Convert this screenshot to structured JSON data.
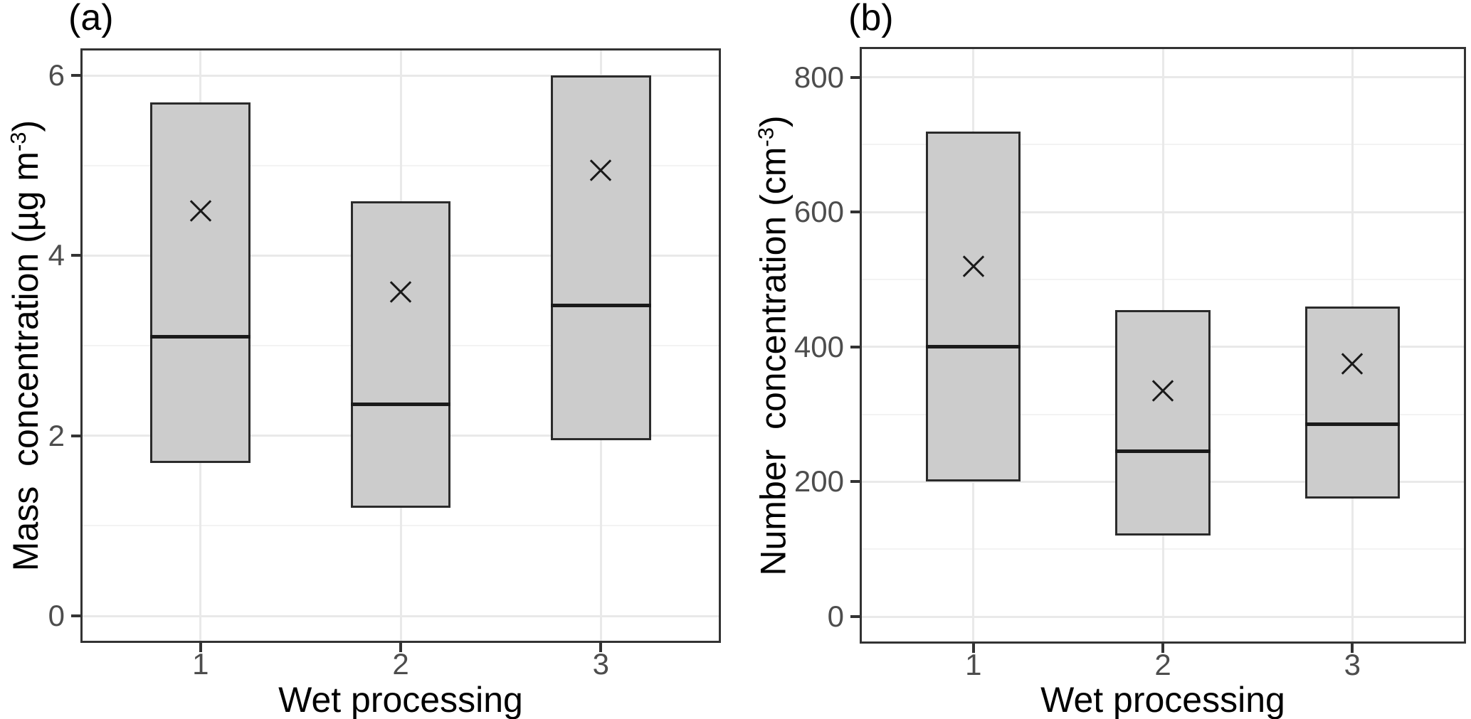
{
  "figure": {
    "background": "#ffffff",
    "panel_count": 2
  },
  "colors": {
    "background": "#ffffff",
    "panel_background": "#ffffff",
    "panel_border": "#333333",
    "grid_major": "#e9e9e9",
    "grid_minor": "#f3f3f3",
    "box_fill": "#cccccc",
    "box_border": "#2b2b2b",
    "median_line": "#1a1a1a",
    "mean_marker": "#1a1a1a",
    "tick_mark": "#333333",
    "tick_label": "#4d4d4d",
    "axis_title": "#000000"
  },
  "chart_data": [
    {
      "type": "box",
      "panel_label": "(a)",
      "xlabel": "Wet processing",
      "ylabel": "Mass  concentration (µg m⁻³)",
      "ylabel_parts": {
        "before": "Mass  concentration (µg m",
        "sup": "-3",
        "after": ")"
      },
      "categories": [
        "1",
        "2",
        "3"
      ],
      "yticks": [
        "0",
        "2",
        "4",
        "6"
      ],
      "ytick_values": [
        0,
        2,
        4,
        6
      ],
      "yticks_minor": [
        1,
        3,
        5
      ],
      "ylim": [
        -0.3,
        6.3
      ],
      "grid": true,
      "legend_position": "none",
      "box_width_units": 0.5,
      "boxes": [
        {
          "category": "1",
          "q1": 1.7,
          "median": 3.1,
          "q3": 5.7,
          "mean": 4.5
        },
        {
          "category": "2",
          "q1": 1.2,
          "median": 2.35,
          "q3": 4.6,
          "mean": 3.6
        },
        {
          "category": "3",
          "q1": 1.95,
          "median": 3.45,
          "q3": 6.0,
          "mean": 4.95
        }
      ]
    },
    {
      "type": "box",
      "panel_label": "(b)",
      "xlabel": "Wet processing",
      "ylabel": "Number  concentration (cm⁻³)",
      "ylabel_parts": {
        "before": "Number  concentration (cm",
        "sup": "-3",
        "after": ")"
      },
      "categories": [
        "1",
        "2",
        "3"
      ],
      "yticks": [
        "0",
        "200",
        "400",
        "600",
        "800"
      ],
      "ytick_values": [
        0,
        200,
        400,
        600,
        800
      ],
      "yticks_minor": [
        100,
        300,
        500,
        700
      ],
      "ylim": [
        -40,
        845
      ],
      "grid": true,
      "legend_position": "none",
      "box_width_units": 0.5,
      "boxes": [
        {
          "category": "1",
          "q1": 200,
          "median": 400,
          "q3": 720,
          "mean": 520
        },
        {
          "category": "2",
          "q1": 120,
          "median": 245,
          "q3": 455,
          "mean": 335
        },
        {
          "category": "3",
          "q1": 175,
          "median": 285,
          "q3": 460,
          "mean": 375
        }
      ]
    }
  ]
}
